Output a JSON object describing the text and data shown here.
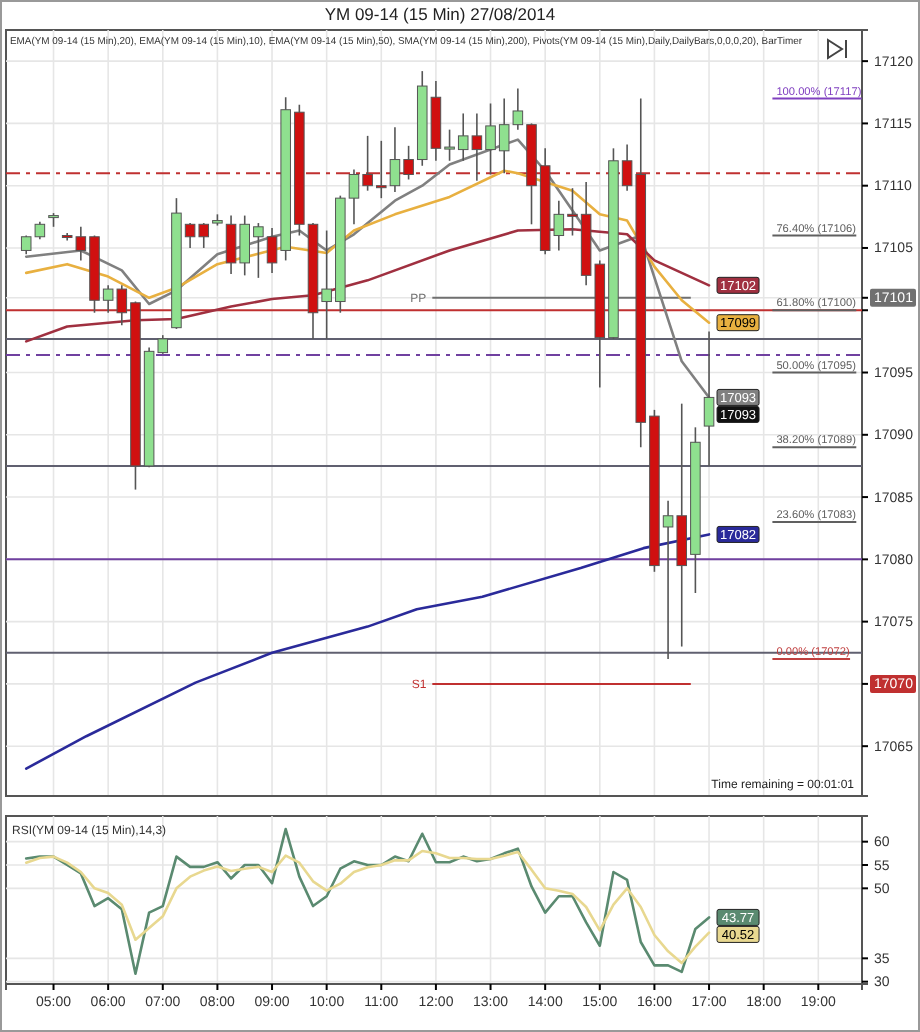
{
  "chart_data": [
    {
      "type": "candlestick",
      "title": "YM 09-14 (15 Min)  27/08/2014",
      "subtitle": "EMA(YM 09-14 (15 Min),20), EMA(YM 09-14 (15 Min),10), EMA(YM 09-14 (15 Min),50), SMA(YM 09-14 (15 Min),200), Pivots(YM 09-14 (15 Min),Daily,DailyBars,0,0,0,20), BarTimer",
      "x": [
        4.5,
        4.75,
        5,
        5.25,
        5.5,
        5.75,
        6,
        6.25,
        6.5,
        6.75,
        7,
        7.25,
        7.5,
        7.75,
        8,
        8.25,
        8.5,
        8.75,
        9,
        9.25,
        9.5,
        9.75,
        10,
        10.25,
        10.5,
        10.75,
        11,
        11.25,
        11.5,
        11.75,
        12,
        12.25,
        12.5,
        12.75,
        13,
        13.25,
        13.5,
        13.75,
        14,
        14.25,
        14.5,
        14.75,
        15,
        15.25,
        15.5,
        15.75,
        16,
        16.25,
        16.5,
        16.75,
        17
      ],
      "ohlc": [
        [
          17104.8,
          17106,
          17104.5,
          17105.9
        ],
        [
          17105.9,
          17107.1,
          17105.7,
          17106.9
        ],
        [
          17107.5,
          17107.8,
          17106.7,
          17107.6
        ],
        [
          17106,
          17106.2,
          17105.6,
          17105.9
        ],
        [
          17105.9,
          17106.7,
          17104,
          17104.8
        ],
        [
          17105.9,
          17106,
          17099.8,
          17100.8
        ],
        [
          17100.8,
          17102,
          17099.8,
          17101.7
        ],
        [
          17101.7,
          17102,
          17098.8,
          17099.8
        ],
        [
          17100.6,
          17100.7,
          17085.6,
          17087.5
        ],
        [
          17087.5,
          17097,
          17087.4,
          17096.7
        ],
        [
          17096.6,
          17098,
          17096.5,
          17097.7
        ],
        [
          17098.6,
          17109,
          17098.5,
          17107.8
        ],
        [
          17106.9,
          17107,
          17105,
          17105.9
        ],
        [
          17106.9,
          17107,
          17105,
          17105.9
        ],
        [
          17107,
          17107.7,
          17106.8,
          17107.2
        ],
        [
          17106.9,
          17107.6,
          17102.9,
          17103.8
        ],
        [
          17103.8,
          17107.6,
          17102.8,
          17106.9
        ],
        [
          17105.9,
          17107,
          17102.6,
          17106.7
        ],
        [
          17105.9,
          17106.6,
          17103,
          17103.8
        ],
        [
          17104.8,
          17117.1,
          17104,
          17116.1
        ],
        [
          17115.9,
          17116.5,
          17106,
          17106.9
        ],
        [
          17106.9,
          17107,
          17097.7,
          17099.8
        ],
        [
          17100.7,
          17106.4,
          17097.7,
          17101.7
        ],
        [
          17100.7,
          17109.2,
          17099.8,
          17109
        ],
        [
          17109,
          17111.3,
          17106.9,
          17110.9
        ],
        [
          17110.9,
          17114,
          17109.6,
          17110
        ],
        [
          17110,
          17113.6,
          17109,
          17109.9
        ],
        [
          17110,
          17114.7,
          17109.5,
          17112.1
        ],
        [
          17112.1,
          17113.2,
          17110.5,
          17110.9
        ],
        [
          17112.1,
          17119.2,
          17111.6,
          17118
        ],
        [
          17117.1,
          17118.4,
          17112,
          17113
        ],
        [
          17113,
          17114.5,
          17112,
          17113.1
        ],
        [
          17112.9,
          17115.8,
          17112,
          17114
        ],
        [
          17114,
          17115.8,
          17110.4,
          17112.9
        ],
        [
          17112.9,
          17116.6,
          17110.9,
          17114.8
        ],
        [
          17112.8,
          17117,
          17111,
          17114.9
        ],
        [
          17114.9,
          17117.8,
          17114.5,
          17116
        ],
        [
          17114.9,
          17115,
          17106.9,
          17110
        ],
        [
          17111.6,
          17113,
          17104.5,
          17104.8
        ],
        [
          17106,
          17108.8,
          17104.8,
          17107.7
        ],
        [
          17107.7,
          17109.8,
          17106,
          17107.6
        ],
        [
          17107.7,
          17110.3,
          17102,
          17102.8
        ],
        [
          17103.7,
          17104,
          17093.8,
          17097.8
        ],
        [
          17097.8,
          17113,
          17097.7,
          17112
        ],
        [
          17112,
          17113.3,
          17109.6,
          17110
        ],
        [
          17110.9,
          17117,
          17089,
          17091
        ],
        [
          17091.5,
          17092,
          17079,
          17079.5
        ],
        [
          17082.6,
          17084.7,
          17072,
          17083.5
        ],
        [
          17083.5,
          17092.5,
          17073,
          17079.5
        ],
        [
          17080.4,
          17090.6,
          17077.3,
          17089.4
        ],
        [
          17090.7,
          17098.3,
          17087.5,
          17093
        ]
      ],
      "colors": [
        "#8fe08f",
        "#8fe08f",
        "#8fe08f",
        "#d01010",
        "#d01010",
        "#d01010",
        "#8fe08f",
        "#d01010",
        "#d01010",
        "#8fe08f",
        "#8fe08f",
        "#8fe08f",
        "#d01010",
        "#d01010",
        "#8fe08f",
        "#d01010",
        "#8fe08f",
        "#8fe08f",
        "#d01010",
        "#8fe08f",
        "#d01010",
        "#d01010",
        "#8fe08f",
        "#8fe08f",
        "#8fe08f",
        "#d01010",
        "#d01010",
        "#8fe08f",
        "#d01010",
        "#8fe08f",
        "#d01010",
        "#8fe08f",
        "#8fe08f",
        "#d01010",
        "#8fe08f",
        "#8fe08f",
        "#8fe08f",
        "#d01010",
        "#d01010",
        "#8fe08f",
        "#d01010",
        "#d01010",
        "#d01010",
        "#8fe08f",
        "#d01010",
        "#d01010",
        "#d01010",
        "#8fe08f",
        "#d01010",
        "#8fe08f",
        "#8fe08f"
      ],
      "series": [
        {
          "type": "line",
          "color": "#808080",
          "x": [
            4.5,
            5.5,
            6.25,
            6.75,
            7.25,
            8,
            9,
            9.5,
            10,
            10.5,
            11.25,
            11.75,
            12.25,
            13.5,
            14,
            14.5,
            15,
            15.75,
            16.5,
            17
          ],
          "values": [
            17104.3,
            17104.8,
            17103.2,
            17100.5,
            17101.6,
            17104.5,
            17105.9,
            17106.4,
            17104.8,
            17106.1,
            17108.8,
            17110,
            17111.7,
            17113.7,
            17111.2,
            17108,
            17104.8,
            17106,
            17095.9,
            17093
          ],
          "value_labels": [
            null,
            null,
            null,
            null,
            null,
            null,
            null,
            null,
            null,
            null,
            null,
            null,
            null,
            null,
            null,
            null,
            null,
            null,
            null,
            "17093"
          ]
        },
        {
          "type": "line",
          "color": "#e8b040",
          "x": [
            4.5,
            5.25,
            6,
            6.75,
            7.25,
            8,
            9.25,
            10,
            10.5,
            11.25,
            12.25,
            13.25,
            13.5,
            14.5,
            15,
            15.5,
            16,
            16.5,
            17
          ],
          "values": [
            17103,
            17103.7,
            17102.7,
            17101,
            17101.8,
            17103.7,
            17105.1,
            17104.6,
            17106.4,
            17107.7,
            17109.1,
            17111.2,
            17111,
            17109.6,
            17107.7,
            17107.2,
            17103.5,
            17100.8,
            17099
          ],
          "value_labels": [
            null,
            null,
            null,
            null,
            null,
            null,
            null,
            null,
            null,
            null,
            null,
            null,
            null,
            null,
            null,
            null,
            null,
            null,
            "17099"
          ]
        },
        {
          "type": "line",
          "color": "#a03040",
          "x": [
            4.5,
            5.25,
            6.5,
            7.25,
            8.25,
            9,
            9.75,
            10.75,
            12.25,
            13.5,
            14.5,
            15.5,
            16,
            17
          ],
          "values": [
            17097.5,
            17098.7,
            17099.2,
            17099.3,
            17100.3,
            17100.9,
            17101.2,
            17102.4,
            17104.8,
            17106.4,
            17106.5,
            17106.1,
            17104,
            17102
          ],
          "value_labels": [
            null,
            null,
            null,
            null,
            null,
            null,
            null,
            null,
            null,
            null,
            null,
            null,
            null,
            "17102"
          ]
        },
        {
          "type": "line",
          "color": "#2a2a9a",
          "x": [
            4.5,
            5.6,
            7.6,
            9,
            10.75,
            11.65,
            12.25,
            12.85,
            14.65,
            15.8,
            17
          ],
          "values": [
            17063.2,
            17065.8,
            17070.1,
            17072.5,
            17074.6,
            17076,
            17076.5,
            17077,
            17079.3,
            17080.9,
            17082
          ],
          "value_labels": [
            null,
            null,
            null,
            null,
            null,
            null,
            null,
            null,
            null,
            null,
            "17082"
          ]
        }
      ],
      "value_labels": [
        null,
        null,
        null,
        null,
        null,
        null,
        null,
        null,
        null,
        null,
        null,
        null,
        null,
        null,
        null,
        null,
        null,
        null,
        null,
        null,
        null,
        null,
        null,
        null,
        null,
        null,
        null,
        null,
        null,
        null,
        null,
        null,
        null,
        null,
        null,
        null,
        null,
        null,
        null,
        null,
        null,
        null,
        null,
        null,
        null,
        null,
        null,
        null,
        null,
        null,
        "17093"
      ],
      "xlim": [
        4.13,
        19.8
      ],
      "xticks": [
        5,
        6,
        7,
        8,
        9,
        10,
        11,
        12,
        13,
        14,
        15,
        16,
        17,
        18,
        19
      ],
      "ylim": [
        17061,
        17122.5
      ],
      "yticks": [
        17065,
        17070,
        17075,
        17080,
        17085,
        17090,
        17095,
        {
          "value": 17100,
          "label": null
        },
        17101,
        17105,
        17110,
        17115,
        17120
      ],
      "grid": true,
      "tick_labels": "y",
      "ref_lines": [
        {
          "axis": "y",
          "value": 17111,
          "color": "#c03030",
          "line_style": "dashed"
        },
        {
          "axis": "y",
          "value": 17100,
          "color": "#c03030",
          "line_style": "solid"
        },
        {
          "axis": "y",
          "value": 17101,
          "label": "PP",
          "color": "#707070",
          "line_style": "solid"
        },
        {
          "axis": "y",
          "value": 17097.7,
          "color": "#606070",
          "line_style": "solid"
        },
        {
          "axis": "y",
          "value": 17096.4,
          "color": "#7040a0",
          "line_style": "dashed"
        },
        {
          "axis": "y",
          "value": 17087.5,
          "color": "#606070",
          "line_style": "solid"
        },
        {
          "axis": "y",
          "value": 17080,
          "color": "#7040a0",
          "line_style": "solid"
        },
        {
          "axis": "y",
          "value": 17072.5,
          "color": "#606070",
          "line_style": "solid"
        },
        {
          "axis": "y",
          "value": 17070,
          "label": "S1",
          "color": "#c03030",
          "line_style": "solid"
        },
        {
          "axis": "y",
          "value": 17117,
          "label": "100.00% (17117)",
          "color": "#8040c0"
        },
        {
          "axis": "y",
          "value": 17106,
          "label": "76.40% (17106)",
          "color": "#606060"
        },
        {
          "axis": "y",
          "value": 17100,
          "label": "61.80% (17100)",
          "color": "#606060"
        },
        {
          "axis": "y",
          "value": 17095,
          "label": "50.00% (17095)",
          "color": "#606060"
        },
        {
          "axis": "y",
          "value": 17089,
          "label": "38.20% (17089)",
          "color": "#606060"
        },
        {
          "axis": "y",
          "value": 17083,
          "label": "23.60% (17083)",
          "color": "#606060"
        },
        {
          "axis": "y",
          "value": 17072,
          "label": "0.00% (17072)",
          "color": "#c04040"
        }
      ],
      "annotations": [
        "Time remaining = 00:01:01"
      ]
    },
    {
      "type": "line",
      "title": "RSI(YM 09-14 (15 Min),14,3)",
      "x": [
        4.5,
        4.75,
        5,
        5.25,
        5.5,
        5.75,
        6,
        6.25,
        6.5,
        6.75,
        7,
        7.25,
        7.5,
        7.75,
        8,
        8.25,
        8.5,
        8.75,
        9,
        9.25,
        9.5,
        9.75,
        10,
        10.25,
        10.5,
        10.75,
        11,
        11.25,
        11.5,
        11.75,
        12,
        12.25,
        12.5,
        12.75,
        13,
        13.25,
        13.5,
        13.75,
        14,
        14.25,
        14.5,
        14.75,
        15,
        15.25,
        15.5,
        15.75,
        16,
        16.25,
        16.5,
        16.75,
        17
      ],
      "series": [
        {
          "color": "#5a8a70",
          "values": [
            56.4,
            56.8,
            56.8,
            55,
            53.2,
            46.2,
            47.9,
            45.5,
            31.7,
            44.8,
            46.2,
            56.8,
            54.6,
            54.6,
            55.6,
            52.1,
            55,
            55,
            51.1,
            62.7,
            52.5,
            46.2,
            48.3,
            54.2,
            55.8,
            55,
            55,
            56.8,
            55.8,
            61.7,
            55.6,
            55.6,
            56.8,
            55.8,
            56.3,
            57.5,
            58.5,
            50.4,
            44.8,
            48.3,
            48.3,
            42.7,
            37.7,
            53.5,
            51.8,
            38.5,
            33.5,
            33.5,
            32.1,
            41.3,
            43.77
          ],
          "value_labels": [
            null,
            null,
            null,
            null,
            null,
            null,
            null,
            null,
            null,
            null,
            null,
            null,
            null,
            null,
            null,
            null,
            null,
            null,
            null,
            null,
            null,
            null,
            null,
            null,
            null,
            null,
            null,
            null,
            null,
            null,
            null,
            null,
            null,
            null,
            null,
            null,
            null,
            null,
            null,
            null,
            null,
            null,
            null,
            null,
            null,
            null,
            null,
            null,
            null,
            null,
            "43.77"
          ]
        },
        {
          "color": "#e8d890",
          "values": [
            55.5,
            56.5,
            56.8,
            55.5,
            53.5,
            50,
            49,
            46.5,
            39,
            41.5,
            44,
            50,
            52.5,
            53.8,
            54.7,
            53.7,
            54.2,
            54.6,
            53.5,
            57,
            55.5,
            51.5,
            49.5,
            51,
            53.5,
            54.5,
            55,
            56,
            56,
            58,
            57.5,
            56.5,
            56.5,
            56.3,
            56.3,
            57,
            57.8,
            54,
            50,
            49.5,
            48.8,
            46,
            41,
            46.5,
            50,
            46,
            40,
            36.5,
            34,
            37.5,
            40.52
          ],
          "value_labels": [
            null,
            null,
            null,
            null,
            null,
            null,
            null,
            null,
            null,
            null,
            null,
            null,
            null,
            null,
            null,
            null,
            null,
            null,
            null,
            null,
            null,
            null,
            null,
            null,
            null,
            null,
            null,
            null,
            null,
            null,
            null,
            null,
            null,
            null,
            null,
            null,
            null,
            null,
            null,
            null,
            null,
            null,
            null,
            null,
            null,
            null,
            null,
            null,
            null,
            null,
            "40.52"
          ]
        }
      ],
      "xlim": [
        4.13,
        19.8
      ],
      "xticks": [
        {
          "value": 5,
          "label": "05:00"
        },
        {
          "value": 6,
          "label": "06:00"
        },
        {
          "value": 7,
          "label": "07:00"
        },
        {
          "value": 8,
          "label": "08:00"
        },
        {
          "value": 9,
          "label": "09:00"
        },
        {
          "value": 10,
          "label": "10:00"
        },
        {
          "value": 11,
          "label": "11:00"
        },
        {
          "value": 12,
          "label": "12:00"
        },
        {
          "value": 13,
          "label": "13:00"
        },
        {
          "value": 14,
          "label": "14:00"
        },
        {
          "value": 15,
          "label": "15:00"
        },
        {
          "value": 16,
          "label": "16:00"
        },
        {
          "value": 17,
          "label": "17:00"
        },
        {
          "value": 18,
          "label": "18:00"
        },
        {
          "value": 19,
          "label": "19:00"
        }
      ],
      "ylim": [
        29.5,
        65.5
      ],
      "yticks": [
        30,
        35,
        50,
        55,
        60
      ],
      "grid": true
    }
  ]
}
